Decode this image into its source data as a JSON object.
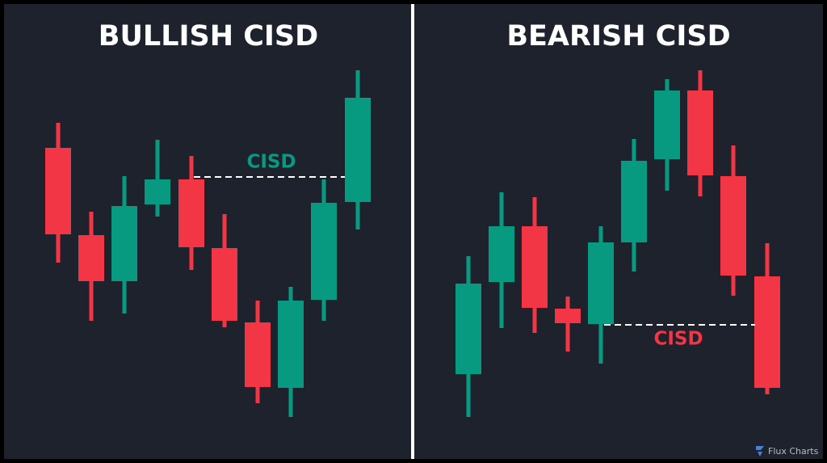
{
  "panels": [
    {
      "title": "BULLISH CISD",
      "label": "CISD"
    },
    {
      "title": "BEARISH CISD",
      "label": "CISD"
    }
  ],
  "watermark": "Flux Charts"
}
